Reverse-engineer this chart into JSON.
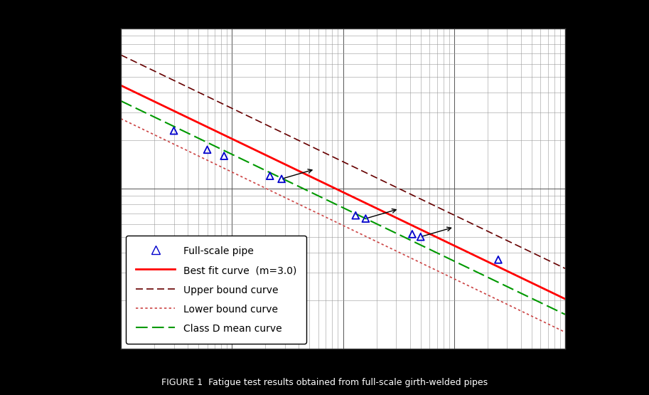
{
  "title": "FIGURE 1  Fatigue test results obtained from full-scale girth-welded pipes",
  "xlim_log": [
    4,
    8
  ],
  "ylim_log": [
    1,
    3
  ],
  "background_color": "#000000",
  "plot_bg_color": "#ffffff",
  "grid_color": "#999999",
  "grid_major_color": "#555555",
  "data_points": [
    [
      30000.0,
      230
    ],
    [
      60000.0,
      175
    ],
    [
      85000.0,
      160
    ],
    [
      220000.0,
      120
    ],
    [
      280000.0,
      115
    ],
    [
      1300000.0,
      68
    ],
    [
      1600000.0,
      65
    ],
    [
      4200000.0,
      52
    ],
    [
      5000000.0,
      50
    ],
    [
      25000000.0,
      36
    ]
  ],
  "runout_points": [
    [
      280000.0,
      115
    ],
    [
      1600000.0,
      65
    ],
    [
      5000000.0,
      50
    ]
  ],
  "A_best": 9500.0,
  "A_upper_factor": 1.55,
  "A_lower_factor": 0.62,
  "A_class_d_factor": 0.8,
  "best_fit_color": "#ff0000",
  "upper_bound_color": "#660000",
  "lower_bound_color": "#cc4444",
  "class_d_color": "#009900",
  "data_color": "#0000cc",
  "legend_fontsize": 10,
  "title_fontsize": 9
}
